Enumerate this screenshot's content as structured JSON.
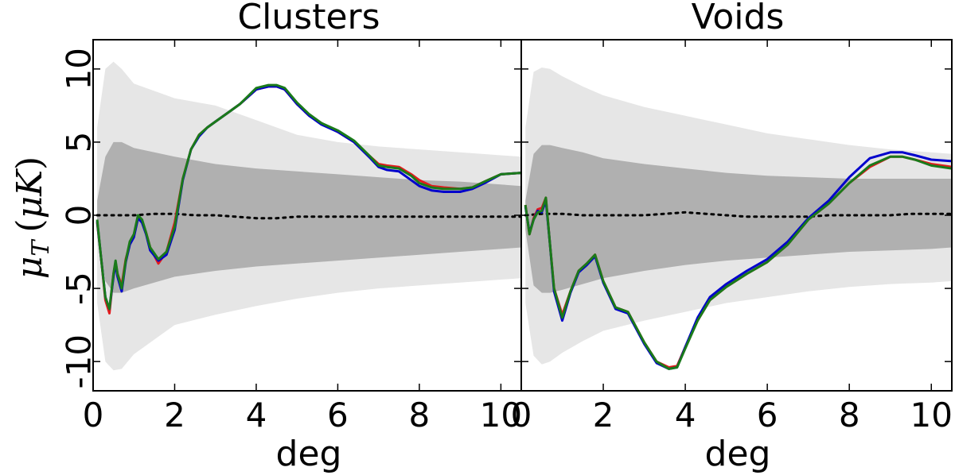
{
  "chart_data": {
    "type": "line",
    "ylabel": "μ_T (μK)",
    "ylabel_parts": {
      "symbol": "μ",
      "subscript": "T",
      "unit_open": "(",
      "unit_symbol": "μK",
      "unit_close": ")"
    },
    "xlabel": "deg",
    "xlim": [
      0,
      10.5
    ],
    "ylim": [
      -12,
      12
    ],
    "xticks": [
      0,
      2,
      4,
      6,
      8,
      10
    ],
    "yticks": [
      10,
      5,
      0,
      -5,
      -10
    ],
    "ytick_labels": [
      "10",
      "5",
      "0",
      "-5",
      "-10"
    ],
    "band_colors": {
      "outer": "#e6e6e6",
      "inner": "#b0b0b0",
      "mean": "#000000"
    },
    "panels": [
      {
        "title": "Clusters",
        "bands": {
          "x": [
            0.1,
            0.3,
            0.5,
            0.7,
            1.0,
            1.5,
            2.0,
            3.0,
            4.0,
            5.0,
            6.0,
            7.0,
            8.0,
            9.0,
            10.0,
            10.5
          ],
          "outer_upper": [
            6,
            10,
            10.5,
            10,
            9,
            8.5,
            8,
            7.5,
            6.5,
            5.5,
            5,
            4.7,
            4.5,
            4.3,
            4.1,
            4.0
          ],
          "outer_lower": [
            -6,
            -10,
            -10.6,
            -10.5,
            -9.5,
            -8.5,
            -7.5,
            -6.8,
            -6.2,
            -5.7,
            -5.3,
            -5,
            -4.8,
            -4.6,
            -4.4,
            -4.3
          ],
          "inner_upper": [
            1,
            4,
            5,
            5,
            4.6,
            4.3,
            4.0,
            3.5,
            3.2,
            3.0,
            2.8,
            2.6,
            2.4,
            2.3,
            2.1,
            2.0
          ],
          "inner_lower": [
            -1,
            -4.5,
            -5.3,
            -5.3,
            -5,
            -4.6,
            -4.2,
            -3.8,
            -3.5,
            -3.3,
            -3.1,
            -2.9,
            -2.7,
            -2.5,
            -2.3,
            -2.2
          ]
        },
        "mean": {
          "x": [
            0.1,
            0.5,
            1.0,
            1.5,
            2.0,
            2.5,
            3.0,
            3.5,
            4.0,
            4.5,
            5.0,
            5.5,
            6.0,
            6.5,
            7.0,
            7.5,
            8.0,
            8.5,
            9.0,
            9.5,
            10.0,
            10.5
          ],
          "y": [
            0.0,
            0.0,
            0.0,
            0.1,
            0.1,
            0.0,
            0.0,
            -0.1,
            -0.2,
            -0.2,
            -0.1,
            -0.1,
            -0.1,
            -0.1,
            -0.1,
            -0.1,
            -0.1,
            -0.1,
            -0.1,
            -0.1,
            -0.1,
            -0.1
          ]
        },
        "series": [
          {
            "name": "red",
            "color": "#e31a1c",
            "x": [
              0.1,
              0.2,
              0.3,
              0.4,
              0.5,
              0.55,
              0.6,
              0.7,
              0.8,
              0.9,
              1.0,
              1.1,
              1.2,
              1.3,
              1.4,
              1.6,
              1.8,
              2.0,
              2.2,
              2.4,
              2.6,
              2.8,
              3.0,
              3.3,
              3.6,
              4.0,
              4.3,
              4.5,
              4.7,
              5.0,
              5.3,
              5.6,
              6.0,
              6.4,
              6.8,
              7.0,
              7.2,
              7.5,
              7.8,
              8.0,
              8.3,
              8.6,
              9.0,
              9.3,
              9.6,
              10.0,
              10.5
            ],
            "y": [
              -0.5,
              -3,
              -5.8,
              -6.7,
              -4,
              -3.2,
              -4,
              -4.8,
              -3,
              -2,
              -1.4,
              -0.2,
              -0.4,
              -1.2,
              -2.2,
              -3.3,
              -2.5,
              -0.5,
              2.5,
              4.5,
              5.5,
              6,
              6.4,
              7,
              7.6,
              8.6,
              8.8,
              8.8,
              8.6,
              7.6,
              6.8,
              6.3,
              5.7,
              5.0,
              4.0,
              3.5,
              3.4,
              3.3,
              2.8,
              2.4,
              2.0,
              1.9,
              1.8,
              1.9,
              2.3,
              2.8,
              2.9
            ]
          },
          {
            "name": "blue",
            "color": "#0000cc",
            "x": [
              0.1,
              0.2,
              0.3,
              0.4,
              0.5,
              0.55,
              0.6,
              0.7,
              0.8,
              0.9,
              1.0,
              1.1,
              1.2,
              1.3,
              1.4,
              1.6,
              1.8,
              2.0,
              2.2,
              2.4,
              2.6,
              2.8,
              3.0,
              3.3,
              3.6,
              4.0,
              4.3,
              4.5,
              4.7,
              5.0,
              5.3,
              5.6,
              6.0,
              6.4,
              6.8,
              7.0,
              7.2,
              7.5,
              7.8,
              8.0,
              8.3,
              8.6,
              9.0,
              9.3,
              9.6,
              10.0,
              10.5
            ],
            "y": [
              -0.4,
              -3,
              -5.6,
              -6.4,
              -4.2,
              -3.3,
              -4.2,
              -5.2,
              -3.2,
              -2,
              -1.5,
              -0.2,
              -0.5,
              -1.3,
              -2.4,
              -3.1,
              -2.7,
              -1,
              2.4,
              4.5,
              5.4,
              6,
              6.4,
              7,
              7.6,
              8.6,
              8.8,
              8.8,
              8.6,
              7.6,
              6.8,
              6.2,
              5.7,
              5.0,
              3.9,
              3.3,
              3.1,
              3.0,
              2.4,
              2.0,
              1.7,
              1.6,
              1.6,
              1.8,
              2.2,
              2.8,
              2.9
            ]
          },
          {
            "name": "green",
            "color": "#1a7a1a",
            "x": [
              0.1,
              0.2,
              0.3,
              0.4,
              0.5,
              0.55,
              0.6,
              0.7,
              0.8,
              0.9,
              1.0,
              1.1,
              1.2,
              1.3,
              1.4,
              1.6,
              1.8,
              2.0,
              2.2,
              2.4,
              2.6,
              2.8,
              3.0,
              3.3,
              3.6,
              4.0,
              4.3,
              4.5,
              4.7,
              5.0,
              5.3,
              5.6,
              6.0,
              6.4,
              6.8,
              7.0,
              7.2,
              7.5,
              7.8,
              8.0,
              8.3,
              8.6,
              9.0,
              9.3,
              9.6,
              10.0,
              10.5
            ],
            "y": [
              -0.3,
              -3,
              -5.6,
              -6.4,
              -4,
              -3.1,
              -4,
              -5,
              -3.1,
              -1.8,
              -1.3,
              0,
              -0.3,
              -1.2,
              -2.2,
              -3.0,
              -2.5,
              -0.8,
              2.5,
              4.5,
              5.5,
              6,
              6.4,
              7,
              7.6,
              8.7,
              8.9,
              8.9,
              8.7,
              7.7,
              6.9,
              6.3,
              5.8,
              5.1,
              4.0,
              3.4,
              3.3,
              3.2,
              2.7,
              2.2,
              1.9,
              1.8,
              1.8,
              1.9,
              2.3,
              2.8,
              2.9
            ]
          }
        ]
      },
      {
        "title": "Voids",
        "bands": {
          "x": [
            0.1,
            0.3,
            0.5,
            0.7,
            1.0,
            1.5,
            2.0,
            3.0,
            4.0,
            5.0,
            6.0,
            7.0,
            8.0,
            9.0,
            10.0,
            10.5
          ],
          "outer_upper": [
            6,
            9.8,
            10.1,
            10.0,
            9.5,
            8.8,
            8.2,
            7.4,
            6.8,
            6.2,
            5.6,
            5.2,
            4.8,
            4.5,
            4.3,
            4.2
          ],
          "outer_lower": [
            -6,
            -9.6,
            -10.2,
            -10.0,
            -9.4,
            -8.6,
            -7.9,
            -7.2,
            -6.6,
            -6.0,
            -5.6,
            -5.2,
            -4.9,
            -4.7,
            -4.6,
            -4.5
          ],
          "inner_upper": [
            1,
            4.2,
            4.8,
            4.8,
            4.6,
            4.3,
            3.9,
            3.5,
            3.2,
            2.9,
            2.7,
            2.6,
            2.5,
            2.5,
            2.5,
            2.5
          ],
          "inner_lower": [
            -1,
            -4.8,
            -5.3,
            -5.3,
            -5.1,
            -4.7,
            -4.3,
            -3.8,
            -3.4,
            -3.1,
            -2.9,
            -2.7,
            -2.5,
            -2.4,
            -2.3,
            -2.2
          ]
        },
        "mean": {
          "x": [
            0.1,
            0.5,
            1.0,
            1.5,
            2.0,
            2.5,
            3.0,
            3.5,
            4.0,
            4.5,
            5.0,
            5.5,
            6.0,
            6.5,
            7.0,
            7.5,
            8.0,
            8.5,
            9.0,
            9.5,
            10.0,
            10.5
          ],
          "y": [
            0.0,
            0.1,
            0.1,
            0.0,
            0.0,
            0.0,
            0.0,
            0.1,
            0.2,
            0.1,
            0.0,
            -0.1,
            -0.1,
            -0.1,
            -0.1,
            0.0,
            0.0,
            0.0,
            0.0,
            0.1,
            0.1,
            0.1
          ]
        },
        "series": [
          {
            "name": "red",
            "color": "#e31a1c",
            "x": [
              0.1,
              0.2,
              0.3,
              0.4,
              0.5,
              0.6,
              0.7,
              0.8,
              1.0,
              1.2,
              1.4,
              1.6,
              1.8,
              2.0,
              2.3,
              2.6,
              3.0,
              3.3,
              3.6,
              3.8,
              4.0,
              4.3,
              4.6,
              5.0,
              5.5,
              6.0,
              6.5,
              7.0,
              7.5,
              8.0,
              8.5,
              9.0,
              9.3,
              9.6,
              10.0,
              10.5
            ],
            "y": [
              0.7,
              -1.3,
              -0.2,
              0.4,
              0.5,
              1.2,
              -2,
              -5,
              -6.8,
              -5.2,
              -3.8,
              -3.3,
              -2.7,
              -4.5,
              -6.3,
              -6.6,
              -8.7,
              -10.0,
              -10.4,
              -10.3,
              -9.0,
              -7.2,
              -5.8,
              -4.9,
              -4.0,
              -3.2,
              -2.0,
              -0.3,
              0.8,
              2.2,
              3.3,
              4.0,
              4.0,
              3.8,
              3.5,
              3.3
            ]
          },
          {
            "name": "blue",
            "color": "#0000cc",
            "x": [
              0.1,
              0.2,
              0.3,
              0.4,
              0.5,
              0.6,
              0.7,
              0.8,
              1.0,
              1.2,
              1.4,
              1.6,
              1.8,
              2.0,
              2.3,
              2.6,
              3.0,
              3.3,
              3.6,
              3.8,
              4.0,
              4.3,
              4.6,
              5.0,
              5.5,
              6.0,
              6.5,
              7.0,
              7.5,
              8.0,
              8.5,
              9.0,
              9.3,
              9.6,
              10.0,
              10.5
            ],
            "y": [
              0.6,
              -1.2,
              -0.3,
              0.3,
              0.2,
              1.0,
              -2,
              -5.2,
              -7.2,
              -5.3,
              -3.9,
              -3.4,
              -2.8,
              -4.6,
              -6.4,
              -6.7,
              -8.8,
              -10.1,
              -10.5,
              -10.4,
              -9.0,
              -7.0,
              -5.6,
              -4.7,
              -3.8,
              -3.0,
              -1.8,
              -0.2,
              1.0,
              2.6,
              3.9,
              4.3,
              4.3,
              4.1,
              3.8,
              3.7
            ]
          },
          {
            "name": "green",
            "color": "#1a7a1a",
            "x": [
              0.1,
              0.2,
              0.3,
              0.4,
              0.5,
              0.6,
              0.7,
              0.8,
              1.0,
              1.2,
              1.4,
              1.6,
              1.8,
              2.0,
              2.3,
              2.6,
              3.0,
              3.3,
              3.6,
              3.8,
              4.0,
              4.3,
              4.6,
              5.0,
              5.5,
              6.0,
              6.5,
              7.0,
              7.5,
              8.0,
              8.5,
              9.0,
              9.3,
              9.6,
              10.0,
              10.5
            ],
            "y": [
              0.7,
              -1.3,
              -0.3,
              0.2,
              0.3,
              1.2,
              -2,
              -5,
              -7.0,
              -5.2,
              -3.8,
              -3.3,
              -2.7,
              -4.5,
              -6.3,
              -6.6,
              -8.7,
              -10.0,
              -10.5,
              -10.4,
              -9.1,
              -7.2,
              -5.8,
              -4.9,
              -4.0,
              -3.2,
              -2.0,
              -0.3,
              0.8,
              2.2,
              3.4,
              4.0,
              4.0,
              3.8,
              3.4,
              3.2
            ]
          }
        ]
      }
    ]
  }
}
